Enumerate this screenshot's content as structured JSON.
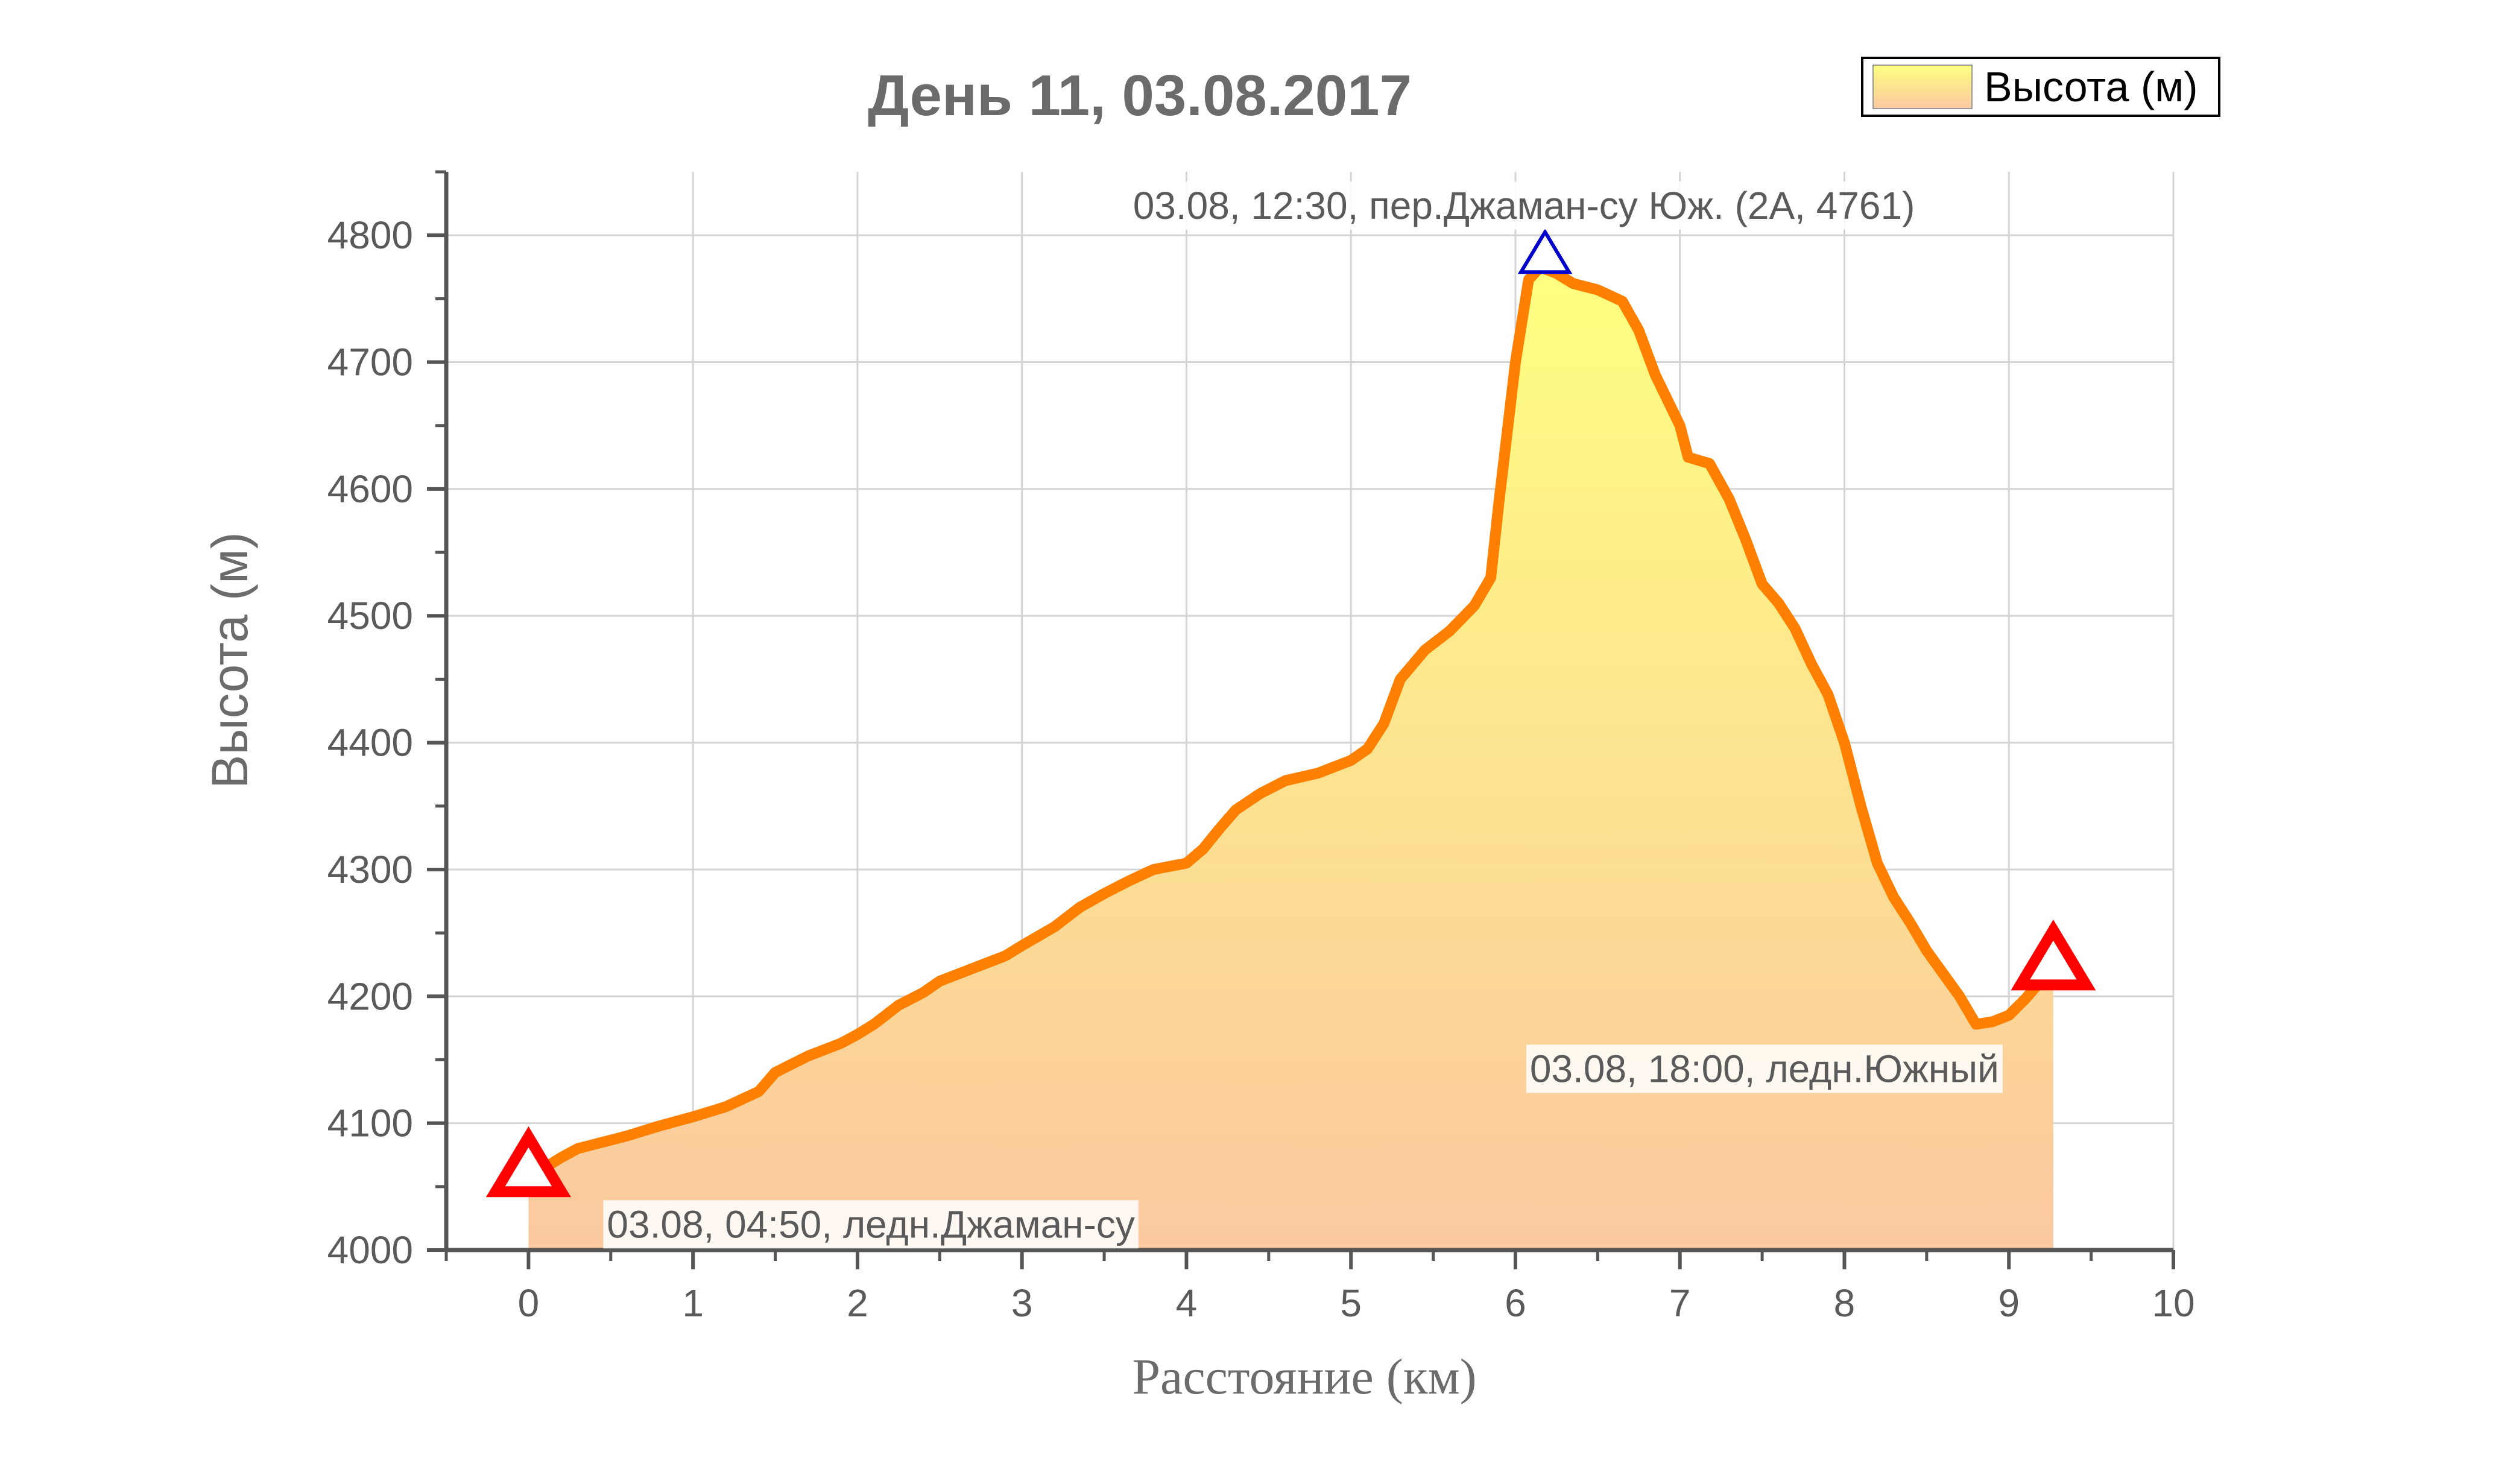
{
  "chart_data": {
    "type": "area",
    "title": "День 11, 03.08.2017",
    "xlabel": "Расстояние (км)",
    "ylabel": "Высота (м)",
    "xlim": [
      -0.5,
      10
    ],
    "ylim": [
      4000,
      4850
    ],
    "x_ticks": [
      "0",
      "1",
      "2",
      "3",
      "4",
      "5",
      "6",
      "7",
      "8",
      "9",
      "10"
    ],
    "y_ticks": [
      "4000",
      "4100",
      "4200",
      "4300",
      "4400",
      "4500",
      "4600",
      "4700",
      "4800"
    ],
    "grid": true,
    "legend_position": "top-right",
    "series": [
      {
        "name": "Высота (м)",
        "line_color": "#ff8000",
        "fill_top_color": "#ffff80",
        "fill_bottom_color": "#fbc8a0",
        "points": [
          [
            0.0,
            4055
          ],
          [
            0.1,
            4065
          ],
          [
            0.2,
            4073
          ],
          [
            0.3,
            4080
          ],
          [
            0.45,
            4085
          ],
          [
            0.6,
            4090
          ],
          [
            0.8,
            4098
          ],
          [
            1.0,
            4105
          ],
          [
            1.2,
            4113
          ],
          [
            1.4,
            4125
          ],
          [
            1.5,
            4140
          ],
          [
            1.7,
            4153
          ],
          [
            1.9,
            4163
          ],
          [
            2.0,
            4170
          ],
          [
            2.1,
            4178
          ],
          [
            2.25,
            4193
          ],
          [
            2.4,
            4203
          ],
          [
            2.5,
            4212
          ],
          [
            2.7,
            4222
          ],
          [
            2.9,
            4232
          ],
          [
            3.0,
            4240
          ],
          [
            3.2,
            4255
          ],
          [
            3.35,
            4270
          ],
          [
            3.5,
            4281
          ],
          [
            3.65,
            4291
          ],
          [
            3.8,
            4300
          ],
          [
            4.0,
            4305
          ],
          [
            4.1,
            4316
          ],
          [
            4.2,
            4332
          ],
          [
            4.3,
            4347
          ],
          [
            4.45,
            4360
          ],
          [
            4.6,
            4370
          ],
          [
            4.8,
            4376
          ],
          [
            5.0,
            4386
          ],
          [
            5.1,
            4395
          ],
          [
            5.2,
            4415
          ],
          [
            5.3,
            4450
          ],
          [
            5.45,
            4473
          ],
          [
            5.6,
            4488
          ],
          [
            5.75,
            4508
          ],
          [
            5.85,
            4530
          ],
          [
            5.9,
            4590
          ],
          [
            6.0,
            4700
          ],
          [
            6.08,
            4765
          ],
          [
            6.15,
            4775
          ],
          [
            6.25,
            4770
          ],
          [
            6.35,
            4762
          ],
          [
            6.5,
            4757
          ],
          [
            6.65,
            4748
          ],
          [
            6.75,
            4725
          ],
          [
            6.85,
            4690
          ],
          [
            7.0,
            4650
          ],
          [
            7.05,
            4625
          ],
          [
            7.18,
            4620
          ],
          [
            7.3,
            4592
          ],
          [
            7.4,
            4560
          ],
          [
            7.5,
            4525
          ],
          [
            7.6,
            4510
          ],
          [
            7.7,
            4490
          ],
          [
            7.8,
            4462
          ],
          [
            7.9,
            4438
          ],
          [
            8.0,
            4400
          ],
          [
            8.1,
            4350
          ],
          [
            8.2,
            4305
          ],
          [
            8.3,
            4278
          ],
          [
            8.4,
            4258
          ],
          [
            8.5,
            4236
          ],
          [
            8.6,
            4218
          ],
          [
            8.7,
            4200
          ],
          [
            8.8,
            4178
          ],
          [
            8.9,
            4180
          ],
          [
            9.0,
            4185
          ],
          [
            9.1,
            4198
          ],
          [
            9.2,
            4213
          ],
          [
            9.27,
            4218
          ]
        ]
      }
    ],
    "annotations": [
      {
        "text": "03.08, 04:50, ледн.Джаман-су",
        "x": 0.0,
        "y": 4055,
        "marker": "triangle",
        "marker_color": "#ff0000",
        "marker_style": "large"
      },
      {
        "text": "03.08, 12:30, пер.Джаман-су Юж. (2А, 4761)",
        "x": 6.18,
        "y": 4775,
        "marker": "triangle",
        "marker_color": "#0000cc",
        "marker_style": "small"
      },
      {
        "text": "03.08, 18:00, ледн.Южный",
        "x": 9.27,
        "y": 4218,
        "marker": "triangle",
        "marker_color": "#ff0000",
        "marker_style": "large"
      }
    ]
  }
}
